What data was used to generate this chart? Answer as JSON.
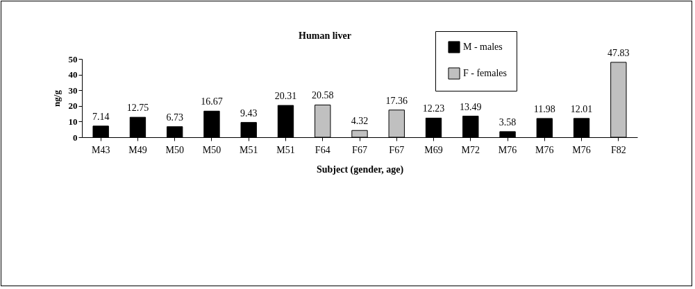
{
  "chart_data": {
    "type": "bar",
    "title": "Human liver",
    "xlabel": "Subject (gender, age)",
    "ylabel": "ng/g",
    "categories": [
      "M43",
      "M49",
      "M50",
      "M50",
      "M51",
      "M51",
      "F64",
      "F67",
      "F67",
      "M69",
      "M72",
      "M76",
      "M76",
      "M76",
      "F82"
    ],
    "series": [
      {
        "name": "M - males",
        "color": "#000000",
        "values": [
          7.14,
          12.75,
          6.73,
          16.67,
          9.43,
          20.31,
          null,
          null,
          null,
          12.23,
          13.49,
          3.58,
          11.98,
          12.01,
          null
        ]
      },
      {
        "name": "F - females",
        "color": "#c0c0c0",
        "values": [
          null,
          null,
          null,
          null,
          null,
          null,
          20.58,
          4.32,
          17.36,
          null,
          null,
          null,
          null,
          null,
          47.83
        ]
      }
    ],
    "ylim": [
      0,
      50
    ],
    "yticks": [
      0,
      10,
      20,
      30,
      40,
      50
    ],
    "grid": false,
    "legend": "top right",
    "data_labels": true
  }
}
